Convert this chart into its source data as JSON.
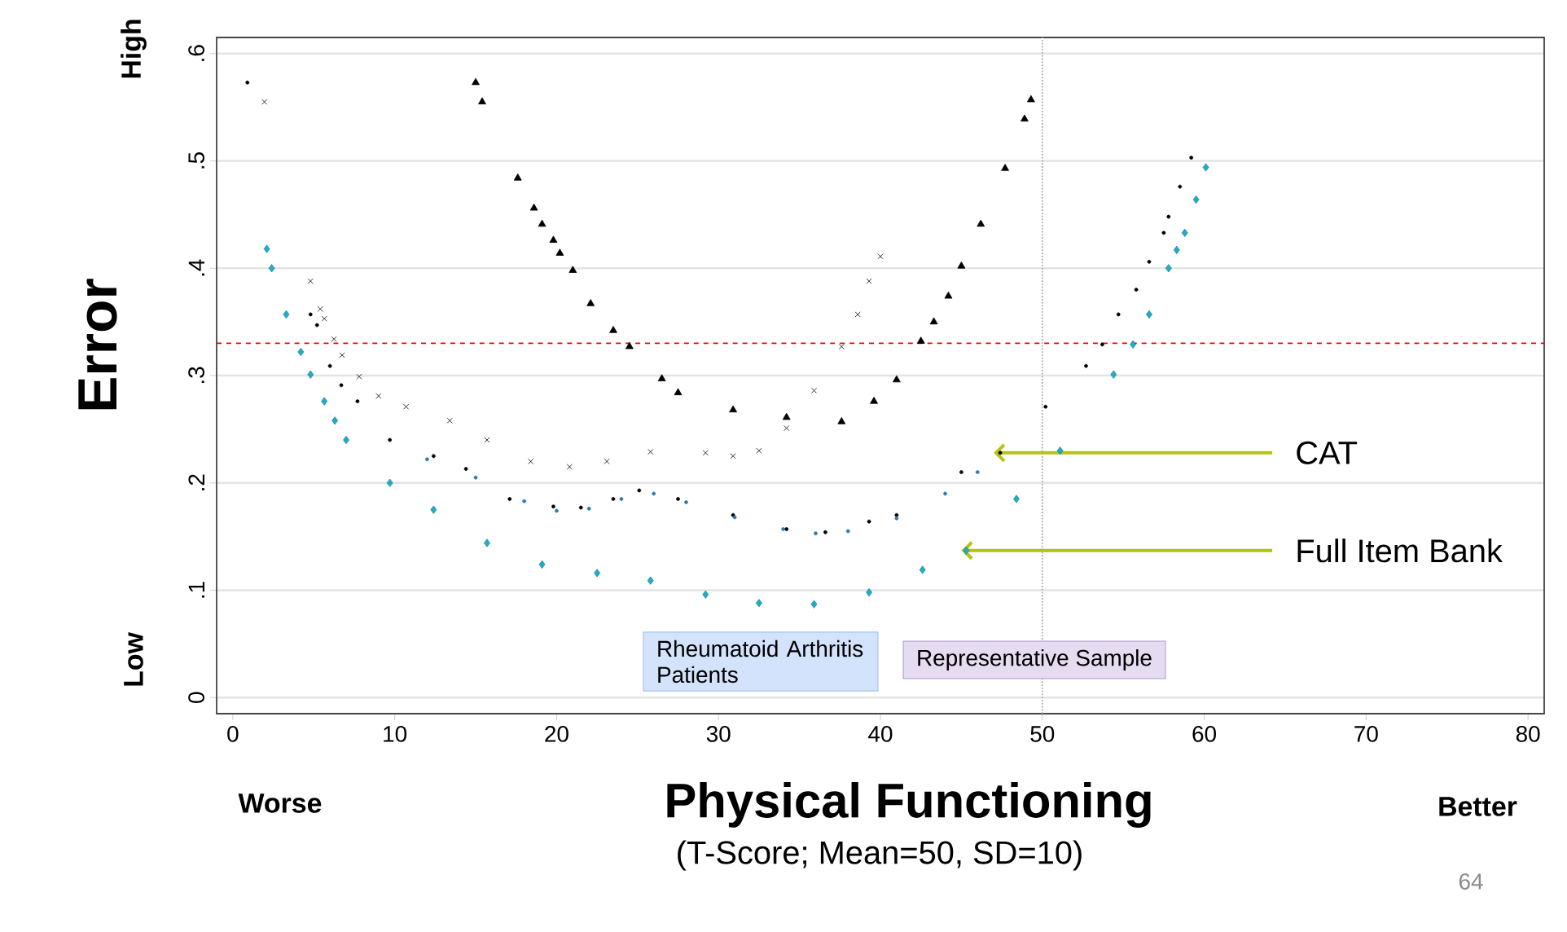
{
  "chart_data": {
    "type": "scatter",
    "xlabel": "Physical Functioning",
    "ylabel": "Error",
    "xlim": [
      -1,
      81
    ],
    "ylim": [
      -0.015,
      0.615
    ],
    "xticks": [
      0,
      10,
      20,
      30,
      40,
      50,
      60,
      70,
      80
    ],
    "yticks": [
      0,
      {
        "value": 0.1,
        "label": ".1"
      },
      {
        "value": 0.2,
        "label": ".2"
      },
      {
        "value": 0.3,
        "label": ".3"
      },
      {
        "value": 0.4,
        "label": ".4"
      },
      {
        "value": 0.5,
        "label": ".5"
      },
      {
        "value": 0.6,
        "label": ".6"
      }
    ],
    "grid": "y",
    "series": [
      {
        "color": "#000000",
        "marker": "triangle",
        "x": [
          15.0,
          15.4,
          17.6,
          18.6,
          19.1,
          19.8,
          20.2,
          21.0,
          22.1,
          23.5,
          24.5,
          26.5,
          27.5,
          30.9,
          34.2,
          37.6,
          39.6,
          41.0,
          42.5,
          43.3,
          44.2,
          45.0,
          46.2,
          47.7,
          48.9,
          49.3
        ],
        "values": [
          0.573,
          0.555,
          0.484,
          0.456,
          0.441,
          0.426,
          0.414,
          0.398,
          0.367,
          0.342,
          0.327,
          0.297,
          0.284,
          0.268,
          0.261,
          0.257,
          0.276,
          0.296,
          0.332,
          0.35,
          0.374,
          0.402,
          0.441,
          0.493,
          0.539,
          0.557
        ]
      },
      {
        "color": "#000000",
        "marker": "cross",
        "x": [
          1.95,
          4.8,
          5.4,
          5.65,
          6.25,
          6.75,
          7.8,
          9.0,
          10.7,
          13.4,
          15.7,
          18.4,
          20.8,
          23.1,
          25.8,
          29.2,
          30.9,
          32.5,
          34.2,
          35.9,
          37.6,
          38.6,
          39.3,
          40.0
        ],
        "values": [
          0.555,
          0.388,
          0.362,
          0.353,
          0.334,
          0.319,
          0.299,
          0.281,
          0.271,
          0.258,
          0.24,
          0.22,
          0.215,
          0.22,
          0.229,
          0.228,
          0.225,
          0.23,
          0.251,
          0.286,
          0.327,
          0.357,
          0.388,
          0.411
        ]
      },
      {
        "color": "#000000",
        "marker": "circle",
        "x": [
          0.9,
          4.8,
          5.2,
          6.0,
          6.7,
          7.7,
          9.7,
          12.4,
          14.4,
          17.1,
          19.8,
          21.5,
          23.5,
          25.1,
          27.5,
          30.9,
          34.2,
          36.6,
          39.3,
          41.0,
          45.0,
          47.4,
          50.2,
          52.7,
          53.7,
          54.7,
          55.8,
          56.6,
          57.5,
          57.8,
          58.5,
          59.2
        ],
        "values": [
          0.573,
          0.357,
          0.347,
          0.309,
          0.291,
          0.276,
          0.24,
          0.225,
          0.213,
          0.185,
          0.178,
          0.177,
          0.185,
          0.193,
          0.185,
          0.17,
          0.157,
          0.154,
          0.164,
          0.17,
          0.21,
          0.228,
          0.271,
          0.309,
          0.329,
          0.357,
          0.38,
          0.406,
          0.433,
          0.448,
          0.476,
          0.503
        ]
      },
      {
        "color": "#2a7ab0",
        "marker": "circle",
        "x": [
          12,
          15,
          18,
          20,
          22,
          24,
          26,
          28,
          31,
          34,
          36,
          38,
          41,
          44,
          46
        ],
        "values": [
          0.222,
          0.205,
          0.183,
          0.174,
          0.176,
          0.185,
          0.19,
          0.182,
          0.168,
          0.157,
          0.153,
          0.155,
          0.167,
          0.19,
          0.21
        ]
      },
      {
        "color": "#1ab0c8",
        "marker": "diamond",
        "x": [
          2.1,
          2.4,
          3.3,
          4.2,
          4.8,
          5.65,
          6.3,
          7.0,
          9.7,
          12.4,
          15.7,
          19.1,
          22.5,
          25.8,
          29.2,
          32.5,
          35.9,
          39.3,
          42.6,
          45.3,
          48.4,
          51.1,
          54.4,
          55.6,
          56.6,
          57.8,
          58.3,
          58.8,
          59.5,
          60.1
        ],
        "values": [
          0.418,
          0.4,
          0.357,
          0.322,
          0.301,
          0.276,
          0.258,
          0.24,
          0.2,
          0.175,
          0.144,
          0.124,
          0.116,
          0.109,
          0.096,
          0.088,
          0.087,
          0.098,
          0.119,
          0.137,
          0.185,
          0.23,
          0.301,
          0.329,
          0.357,
          0.4,
          0.417,
          0.433,
          0.464,
          0.494
        ]
      }
    ],
    "ref_lines": [
      {
        "axis": "y",
        "value": 0.33,
        "color": "#ff0000",
        "line_style": "dashed"
      },
      {
        "axis": "x",
        "value": 50,
        "color": "#aaaaaa",
        "line_style": "dotted"
      }
    ],
    "annotations": [
      "High",
      "Low",
      "Worse",
      "Better",
      "(T-Score; Mean=50, SD=10)",
      "Rheumatoid Arthritis Patients",
      "Representative Sample",
      {
        "text": "CAT",
        "x": 47,
        "y": 0.228
      },
      {
        "text": "Full Item Bank",
        "x": 45,
        "y": 0.137
      },
      "64"
    ]
  }
}
